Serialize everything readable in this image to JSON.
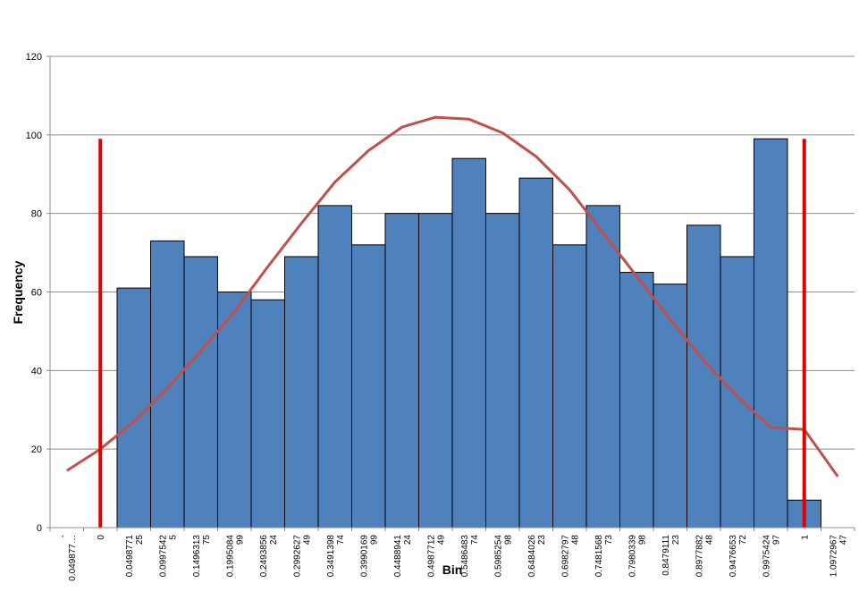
{
  "chart_data": {
    "type": "bar",
    "xlabel": "Bin",
    "ylabel": "Frequency",
    "ylim": [
      0,
      120
    ],
    "yticks": [
      0,
      20,
      40,
      60,
      80,
      100,
      120
    ],
    "grid": true,
    "legend": "none",
    "categories": [
      [
        "-",
        "0.049877…"
      ],
      [
        "0"
      ],
      [
        "0.0498771",
        "25"
      ],
      [
        "0.0997542",
        "5"
      ],
      [
        "0.1496313",
        "75"
      ],
      [
        "0.1995084",
        "99"
      ],
      [
        "0.2493856",
        "24"
      ],
      [
        "0.2992627",
        "49"
      ],
      [
        "0.3491398",
        "74"
      ],
      [
        "0.3990169",
        "99"
      ],
      [
        "0.4488941",
        "24"
      ],
      [
        "0.4987712",
        "49"
      ],
      [
        "0.5486483",
        "74"
      ],
      [
        "0.5985254",
        "98"
      ],
      [
        "0.6484026",
        "23"
      ],
      [
        "0.6982797",
        "48"
      ],
      [
        "0.7481568",
        "73"
      ],
      [
        "0.7980339",
        "98"
      ],
      [
        "0.8479111",
        "23"
      ],
      [
        "0.8977882",
        "48"
      ],
      [
        "0.9476653",
        "72"
      ],
      [
        "0.9975424",
        "97"
      ],
      [
        "1"
      ],
      [
        "1.0972967",
        "47"
      ]
    ],
    "series": [
      {
        "type": "bar",
        "values": [
          0,
          0,
          61,
          73,
          69,
          60,
          58,
          69,
          82,
          72,
          80,
          80,
          94,
          80,
          89,
          72,
          82,
          65,
          62,
          77,
          69,
          99,
          7,
          0
        ]
      },
      {
        "type": "line",
        "values": [
          14.5,
          20,
          27,
          35.5,
          45,
          55,
          66.5,
          77.5,
          88,
          96,
          102,
          104.5,
          104,
          100.5,
          94.5,
          86,
          75,
          64,
          53,
          42.5,
          33.5,
          25.5,
          25,
          13
        ]
      }
    ],
    "reference_lines": [
      {
        "category_index": 1,
        "value": 99
      },
      {
        "category_index": 22,
        "value": 99
      }
    ],
    "colors": {
      "bar": "#4F81BD",
      "bar_edge": "#000000",
      "curve": "#C0504D",
      "reference": "#E00000",
      "grid": "#8C8C8C"
    }
  }
}
